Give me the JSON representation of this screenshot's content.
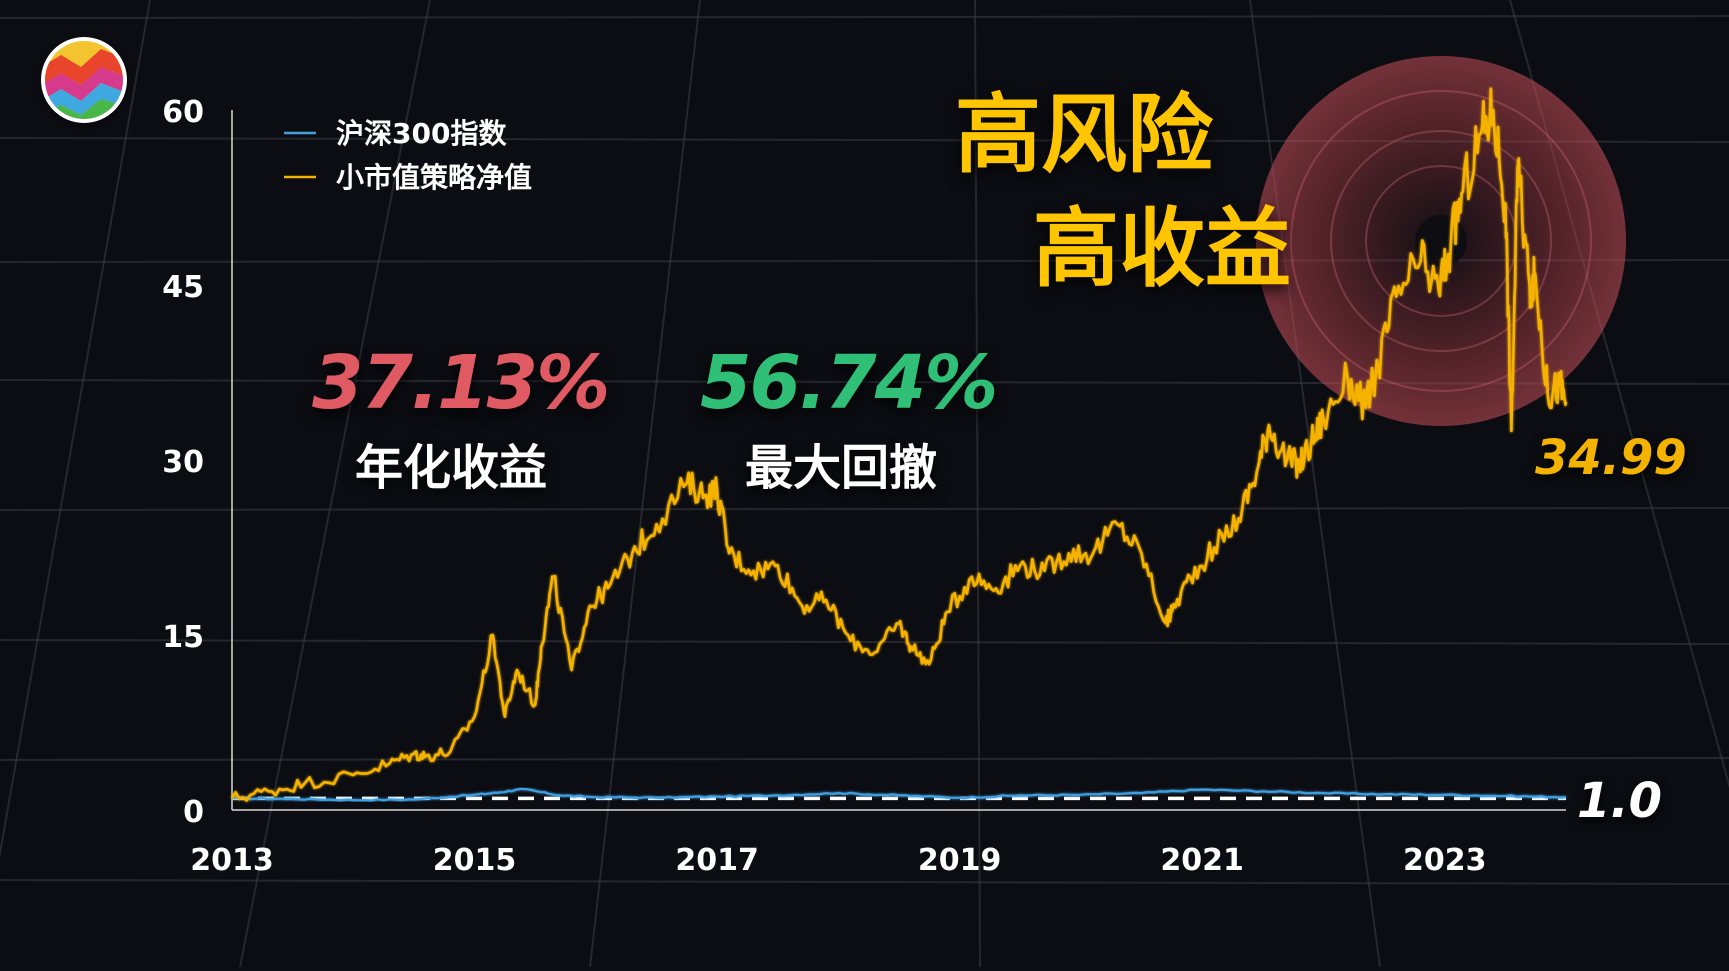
{
  "colors": {
    "background": "#0c0d12",
    "grid": "#3a3d46",
    "axis": "#d8d8d8",
    "strategy": "#f5b301",
    "index": "#3f9fe0",
    "return_red": "#e05a63",
    "drawdown_green": "#2fbf77",
    "headline_yellow": "#ffc500"
  },
  "logo": {
    "icon": "colorful-wave-logo-icon"
  },
  "headline": {
    "line1": "高风险",
    "line2": "高收益"
  },
  "stats": {
    "annual_return_value": "37.13%",
    "annual_return_label": "年化收益",
    "max_drawdown_value": "56.74%",
    "max_drawdown_label": "最大回撤"
  },
  "annotations": {
    "end_value": "34.99",
    "baseline_value": "1.0"
  },
  "chart_data": {
    "type": "line",
    "title": "",
    "xlabel": "",
    "ylabel": "",
    "xlim": [
      2013.0,
      2024.0
    ],
    "ylim": [
      0,
      60
    ],
    "x_ticks": [
      "2013",
      "2015",
      "2017",
      "2019",
      "2021",
      "2023"
    ],
    "y_ticks": [
      "0",
      "15",
      "30",
      "45",
      "60"
    ],
    "grid": true,
    "legend": {
      "position": "top-left",
      "entries": [
        {
          "name": "沪深300指数",
          "color": "#3f9fe0"
        },
        {
          "name": "小市值策略净值",
          "color": "#f5b301"
        }
      ]
    },
    "baseline": {
      "y": 1.0,
      "style": "dashed",
      "color": "#ffffff"
    },
    "series": [
      {
        "name": "沪深300指数",
        "color": "#3f9fe0",
        "x": [
          2013.0,
          2013.5,
          2014.0,
          2014.5,
          2015.0,
          2015.2,
          2015.4,
          2015.7,
          2016.0,
          2016.5,
          2017.0,
          2017.5,
          2018.0,
          2018.5,
          2019.0,
          2019.5,
          2020.0,
          2020.5,
          2021.0,
          2021.5,
          2022.0,
          2022.5,
          2023.0,
          2023.5,
          2024.0
        ],
        "values": [
          1.0,
          0.95,
          0.85,
          0.9,
          1.3,
          1.5,
          1.8,
          1.25,
          1.1,
          1.05,
          1.15,
          1.25,
          1.45,
          1.25,
          1.05,
          1.25,
          1.3,
          1.45,
          1.75,
          1.6,
          1.45,
          1.35,
          1.3,
          1.2,
          1.1
        ]
      },
      {
        "name": "小市值策略净值",
        "color": "#f5b301",
        "x": [
          2013.0,
          2013.3,
          2013.6,
          2014.0,
          2014.3,
          2014.5,
          2014.6,
          2014.8,
          2015.0,
          2015.15,
          2015.25,
          2015.35,
          2015.5,
          2015.55,
          2015.65,
          2015.8,
          2015.95,
          2016.1,
          2016.3,
          2016.5,
          2016.75,
          2016.9,
          2017.0,
          2017.1,
          2017.3,
          2017.5,
          2017.7,
          2017.9,
          2018.1,
          2018.3,
          2018.5,
          2018.6,
          2018.75,
          2018.9,
          2019.1,
          2019.3,
          2019.5,
          2019.7,
          2019.9,
          2020.1,
          2020.3,
          2020.5,
          2020.7,
          2020.75,
          2020.9,
          2021.1,
          2021.3,
          2021.45,
          2021.55,
          2021.7,
          2021.8,
          2021.9,
          2022.0,
          2022.2,
          2022.35,
          2022.45,
          2022.6,
          2022.8,
          2022.95,
          2023.05,
          2023.15,
          2023.3,
          2023.4,
          2023.5,
          2023.55,
          2023.6,
          2023.7,
          2023.75,
          2023.85,
          2023.95,
          2024.0
        ],
        "values": [
          1.0,
          1.6,
          2.3,
          3.0,
          4.0,
          4.8,
          4.6,
          5.0,
          8.0,
          15.0,
          8.0,
          12.0,
          9.0,
          14.0,
          20.0,
          12.0,
          17.5,
          19.0,
          22.0,
          24.5,
          28.0,
          27.0,
          27.5,
          22.0,
          20.5,
          21.0,
          17.5,
          18.0,
          14.5,
          13.5,
          16.0,
          14.0,
          12.5,
          17.0,
          20.0,
          19.0,
          21.0,
          20.5,
          22.0,
          22.0,
          24.5,
          22.0,
          16.0,
          17.0,
          20.0,
          22.5,
          25.0,
          29.0,
          33.0,
          30.0,
          29.5,
          31.5,
          33.5,
          37.0,
          34.5,
          38.0,
          44.0,
          47.0,
          44.5,
          48.5,
          53.0,
          58.0,
          60.0,
          52.0,
          32.5,
          55.0,
          45.0,
          45.5,
          35.5,
          36.5,
          34.99
        ]
      }
    ]
  }
}
